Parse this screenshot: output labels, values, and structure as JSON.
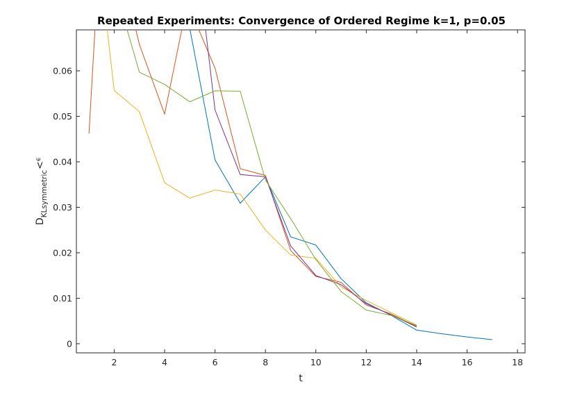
{
  "chart_data": {
    "type": "line",
    "title": "Repeated Experiments: Convergence of Ordered Regime k=1, p=0.05",
    "xlabel": "t",
    "ylabel": {
      "main": "D",
      "subscript": "KLsymmetric",
      "lt": "<",
      "epsilon": "ϵ"
    },
    "xlim": [
      0.5,
      18.3
    ],
    "ylim": [
      -0.002,
      0.069
    ],
    "xticks": [
      2,
      4,
      6,
      8,
      10,
      12,
      14,
      16,
      18
    ],
    "yticks": [
      0,
      0.01,
      0.02,
      0.03,
      0.04,
      0.05,
      0.06
    ],
    "ytick_labels": [
      "0",
      "0.01",
      "0.02",
      "0.03",
      "0.04",
      "0.05",
      "0.06"
    ],
    "grid": false,
    "series": [
      {
        "color": "#0072BD",
        "points": [
          [
            4.8,
            0.075
          ],
          [
            6,
            0.0404
          ],
          [
            7,
            0.0309
          ],
          [
            8,
            0.0367
          ],
          [
            9,
            0.0235
          ],
          [
            10,
            0.0217
          ],
          [
            11,
            0.0143
          ],
          [
            12,
            0.009
          ],
          [
            13,
            0.0062
          ],
          [
            14,
            0.003
          ],
          [
            15,
            0.0022
          ],
          [
            16,
            0.0015
          ],
          [
            17,
            0.0009
          ]
        ]
      },
      {
        "color": "#D95319",
        "points": [
          [
            1,
            0.0462
          ],
          [
            1.3,
            0.075
          ],
          [
            2.6,
            0.075
          ],
          [
            3,
            0.0658
          ],
          [
            4,
            0.0505
          ],
          [
            4.9,
            0.075
          ],
          [
            6,
            0.0606
          ],
          [
            7,
            0.0385
          ],
          [
            8,
            0.037
          ],
          [
            9,
            0.0205
          ],
          [
            10,
            0.0148
          ],
          [
            11,
            0.0135
          ],
          [
            12,
            0.0085
          ],
          [
            13,
            0.0065
          ],
          [
            14,
            0.0038
          ]
        ]
      },
      {
        "color": "#EDB120",
        "points": [
          [
            1.6,
            0.075
          ],
          [
            2,
            0.0557
          ],
          [
            3,
            0.051
          ],
          [
            4,
            0.0354
          ],
          [
            5,
            0.032
          ],
          [
            6,
            0.0338
          ],
          [
            7,
            0.0329
          ],
          [
            8,
            0.025
          ],
          [
            9,
            0.0195
          ],
          [
            10,
            0.0188
          ],
          [
            11,
            0.0125
          ],
          [
            12,
            0.0095
          ],
          [
            13,
            0.0068
          ],
          [
            14,
            0.0041
          ]
        ]
      },
      {
        "color": "#7E2F8E",
        "points": [
          [
            5.5,
            0.075
          ],
          [
            6,
            0.0514
          ],
          [
            7,
            0.0372
          ],
          [
            8,
            0.0367
          ],
          [
            9,
            0.0215
          ],
          [
            10,
            0.015
          ],
          [
            11,
            0.013
          ],
          [
            12,
            0.0088
          ],
          [
            13,
            0.0063
          ],
          [
            14,
            0.0037
          ]
        ]
      },
      {
        "color": "#77AC30",
        "points": [
          [
            2.2,
            0.075
          ],
          [
            3,
            0.0597
          ],
          [
            4,
            0.057
          ],
          [
            5,
            0.0532
          ],
          [
            6,
            0.0556
          ],
          [
            7,
            0.0555
          ],
          [
            8,
            0.036
          ],
          [
            9,
            0.0275
          ],
          [
            10,
            0.0185
          ],
          [
            11,
            0.0115
          ],
          [
            12,
            0.0074
          ],
          [
            13,
            0.0062
          ],
          [
            14,
            0.004
          ]
        ]
      }
    ]
  }
}
